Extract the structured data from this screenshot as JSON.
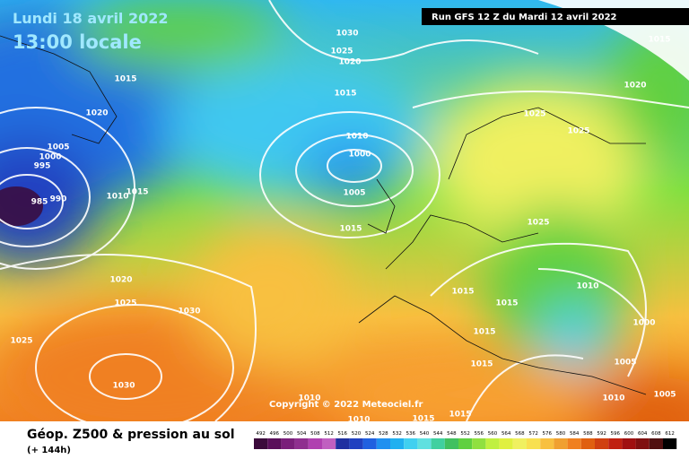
{
  "header": {
    "date": "Lundi 18 avril 2022",
    "time": "13:00 locale",
    "run": "Run GFS 12 Z du Mardi 12 avril 2022"
  },
  "copyright": "Copyright © 2022 Meteociel.fr",
  "footer": {
    "title": "Géop. Z500 & pression au sol",
    "subtitle": "(+ 144h)"
  },
  "isobar_labels": [
    "1030",
    "1025",
    "1020",
    "1015",
    "1015",
    "1020",
    "1005",
    "1000",
    "995",
    "985",
    "990",
    "1010",
    "1015",
    "1010",
    "1000",
    "1005",
    "1015",
    "1020",
    "1025",
    "1030",
    "1025",
    "1030",
    "1015",
    "1020",
    "1025",
    "1025",
    "1025",
    "1015",
    "1015",
    "1010",
    "1015",
    "1000",
    "1015",
    "1005",
    "1010",
    "1005",
    "1010",
    "1010",
    "1015",
    "1015"
  ],
  "scale": {
    "values": [
      492,
      496,
      500,
      504,
      508,
      512,
      516,
      520,
      524,
      528,
      532,
      536,
      540,
      544,
      548,
      552,
      556,
      560,
      564,
      568,
      572,
      576,
      580,
      584,
      588,
      592,
      596,
      600,
      604,
      608,
      612
    ],
    "colors": [
      "#3b0a3b",
      "#5a0f5a",
      "#7a1f7a",
      "#8f2f8f",
      "#b040b0",
      "#c060c0",
      "#2030a0",
      "#2040c0",
      "#2060e0",
      "#2090f0",
      "#20b0f0",
      "#40d0f0",
      "#60e0e0",
      "#40d0a0",
      "#40c060",
      "#60d040",
      "#90e040",
      "#c0f040",
      "#e0f040",
      "#f0f060",
      "#f8e050",
      "#f8c040",
      "#f0a030",
      "#f08020",
      "#e06010",
      "#d04010",
      "#c02010",
      "#a01010",
      "#801010",
      "#501010",
      "#000000"
    ]
  }
}
